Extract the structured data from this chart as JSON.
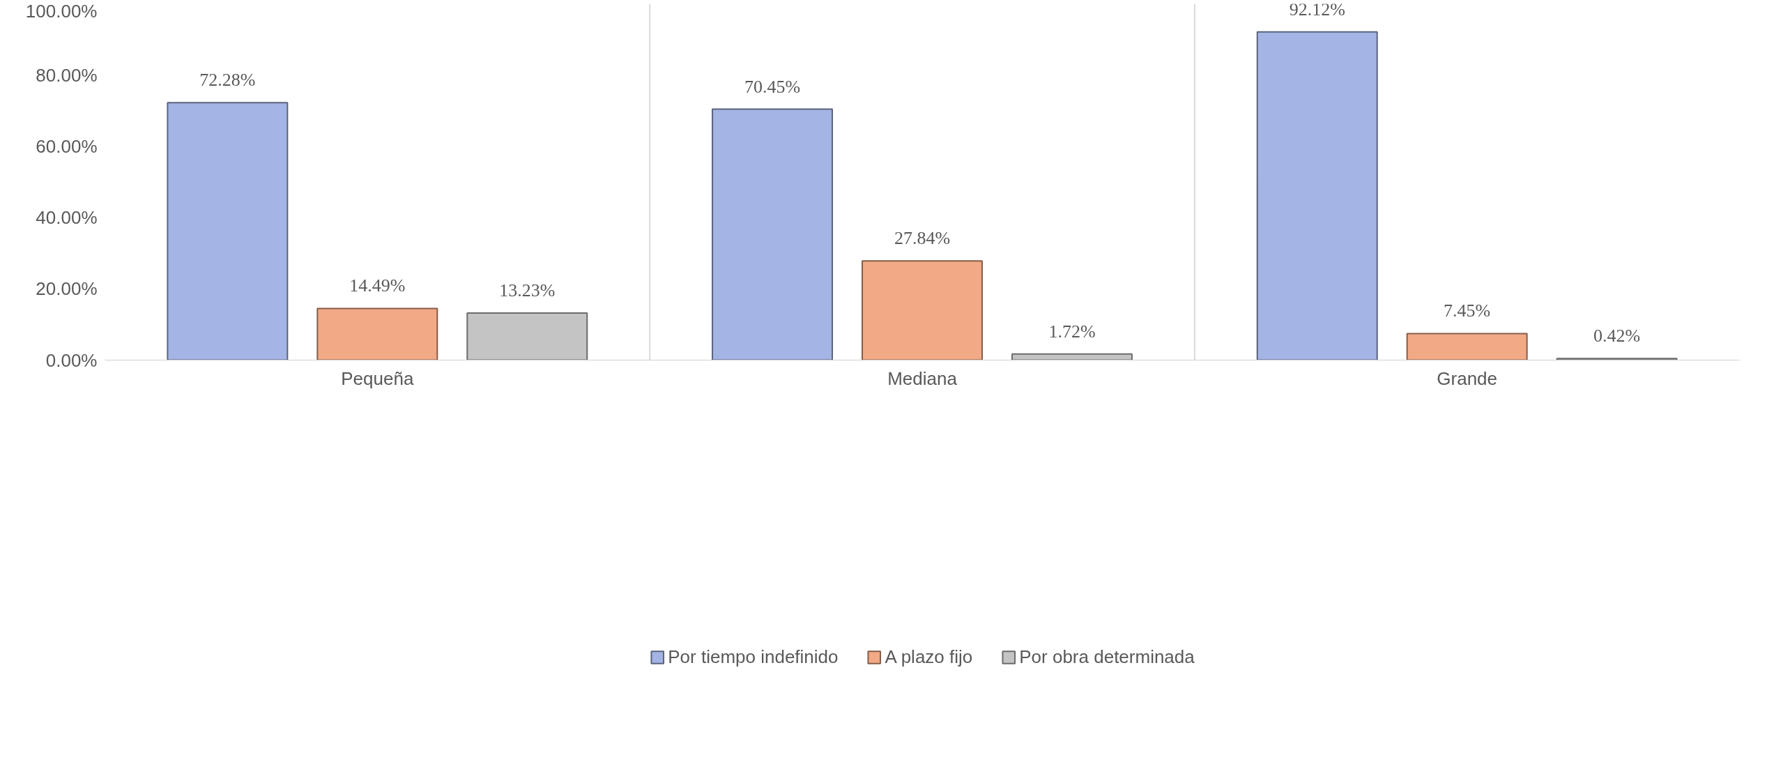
{
  "chart_data": {
    "type": "bar",
    "categories": [
      "Pequeña",
      "Mediana",
      "Grande"
    ],
    "series": [
      {
        "name": "Por tiempo indefinido",
        "color": "#a4b4e4",
        "values": [
          72.28,
          70.45,
          92.12
        ],
        "value_labels": [
          "72.28%",
          "70.45%",
          "92.12%"
        ]
      },
      {
        "name": "A plazo fijo",
        "color": "#f2aa86",
        "values": [
          14.49,
          27.84,
          7.45
        ],
        "value_labels": [
          "14.49%",
          "27.84%",
          "7.45%"
        ]
      },
      {
        "name": "Por obra determinada",
        "color": "#c4c4c4",
        "values": [
          13.23,
          1.72,
          0.42
        ],
        "value_labels": [
          "13.23%",
          "1.72%",
          "0.42%"
        ]
      }
    ],
    "ylim": [
      0,
      100
    ],
    "yticks": [
      {
        "value": 0,
        "label": "0.00%"
      },
      {
        "value": 20,
        "label": "20.00%"
      },
      {
        "value": 40,
        "label": "40.00%"
      },
      {
        "value": 60,
        "label": "60.00%"
      },
      {
        "value": 80,
        "label": "80.00%"
      },
      {
        "value": 100,
        "label": "100.00%"
      }
    ],
    "grid": "x",
    "legend": "bottom"
  }
}
